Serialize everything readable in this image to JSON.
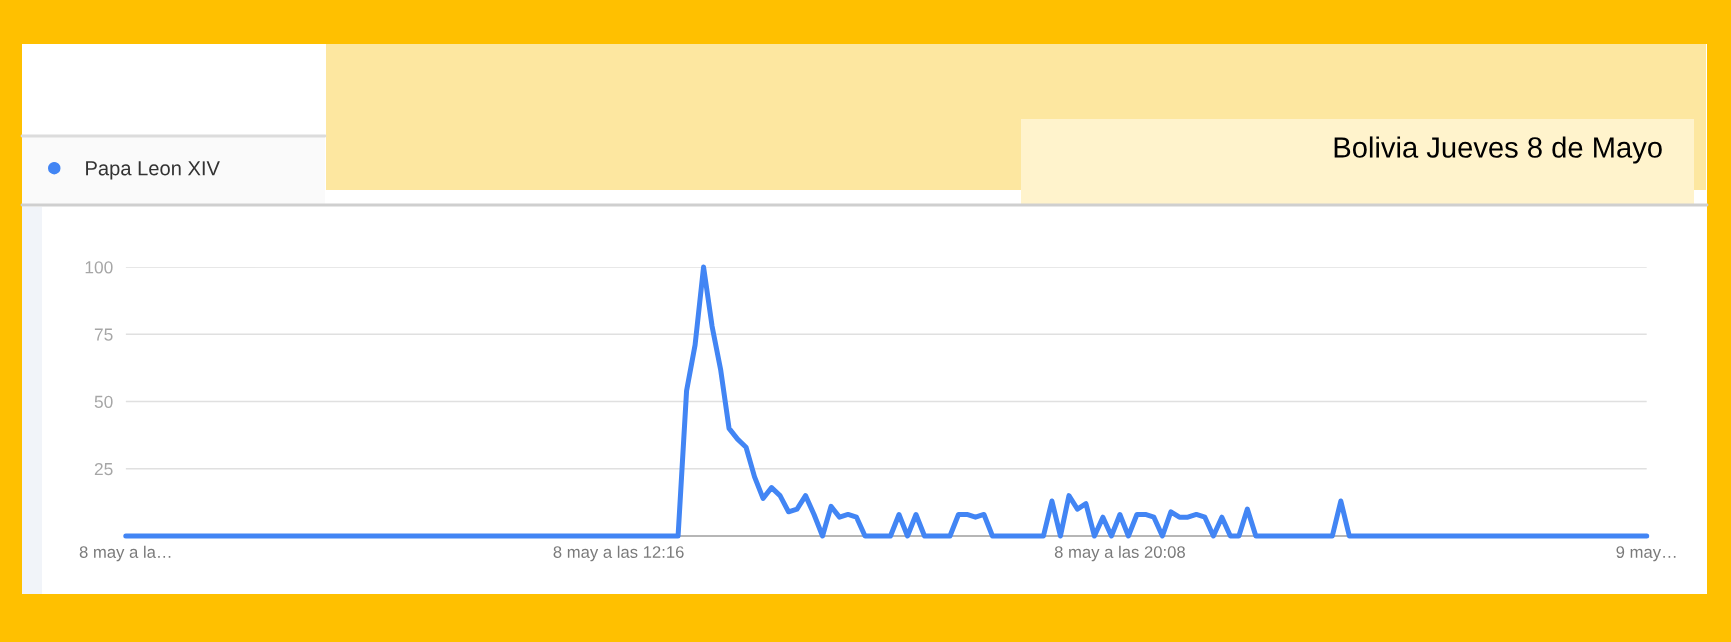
{
  "chart_data": {
    "type": "line",
    "title": "Bolivia Jueves 8 de Mayo",
    "categories": [
      "8 may a la…",
      null,
      null,
      null,
      null,
      null,
      null,
      null,
      null,
      null,
      null,
      null,
      null,
      null,
      null,
      null,
      null,
      null,
      null,
      null,
      null,
      null,
      null,
      null,
      null,
      null,
      null,
      null,
      null,
      null,
      null,
      null,
      null,
      null,
      null,
      null,
      null,
      null,
      null,
      null,
      null,
      null,
      null,
      null,
      null,
      null,
      null,
      null,
      null,
      null,
      null,
      null,
      null,
      null,
      null,
      null,
      null,
      null,
      "8 may a las 12:16",
      null,
      null,
      null,
      null,
      null,
      null,
      null,
      null,
      null,
      null,
      null,
      null,
      null,
      null,
      null,
      null,
      null,
      null,
      null,
      null,
      null,
      null,
      null,
      null,
      null,
      null,
      null,
      null,
      null,
      null,
      null,
      null,
      null,
      null,
      null,
      null,
      null,
      null,
      null,
      null,
      null,
      null,
      null,
      null,
      null,
      null,
      null,
      null,
      null,
      null,
      null,
      null,
      null,
      null,
      null,
      null,
      null,
      null,
      "8 may a las 20:08",
      null,
      null,
      null,
      null,
      null,
      null,
      null,
      null,
      null,
      null,
      null,
      null,
      null,
      null,
      null,
      null,
      null,
      null,
      null,
      null,
      null,
      null,
      null,
      null,
      null,
      null,
      null,
      null,
      null,
      null,
      null,
      null,
      null,
      null,
      null,
      null,
      null,
      null,
      null,
      null,
      null,
      null,
      null,
      null,
      null,
      null,
      null,
      null,
      null,
      null,
      null,
      null,
      null,
      null,
      null,
      null,
      null,
      null,
      null,
      null,
      null,
      "9 may…"
    ],
    "series": [
      {
        "name": "Papa Leon XIV",
        "color": "#4285f4",
        "values": [
          0,
          0,
          0,
          0,
          0,
          0,
          0,
          0,
          0,
          0,
          0,
          0,
          0,
          0,
          0,
          0,
          0,
          0,
          0,
          0,
          0,
          0,
          0,
          0,
          0,
          0,
          0,
          0,
          0,
          0,
          0,
          0,
          0,
          0,
          0,
          0,
          0,
          0,
          0,
          0,
          0,
          0,
          0,
          0,
          0,
          0,
          0,
          0,
          0,
          0,
          0,
          0,
          0,
          0,
          0,
          0,
          0,
          0,
          0,
          0,
          0,
          0,
          0,
          0,
          0,
          0,
          54,
          71,
          100,
          78,
          62,
          40,
          36,
          33,
          22,
          14,
          18,
          15,
          9,
          10,
          15,
          8,
          0,
          11,
          7,
          8,
          7,
          0,
          0,
          0,
          0,
          8,
          0,
          8,
          0,
          0,
          0,
          0,
          8,
          8,
          7,
          8,
          0,
          0,
          0,
          0,
          0,
          0,
          0,
          13,
          0,
          15,
          10,
          12,
          0,
          7,
          0,
          8,
          0,
          8,
          8,
          7,
          0,
          9,
          7,
          7,
          8,
          7,
          0,
          7,
          0,
          0,
          10,
          0,
          0,
          0,
          0,
          0,
          0,
          0,
          0,
          0,
          0,
          13,
          0,
          0,
          0,
          0,
          0,
          0,
          0,
          0,
          0,
          0,
          0,
          0,
          0,
          0,
          0,
          0,
          0,
          0,
          0,
          0,
          0,
          0,
          0,
          0,
          0,
          0,
          0,
          0,
          0,
          0,
          0,
          0,
          0,
          0,
          0,
          0
        ]
      }
    ],
    "ylim": [
      0,
      100
    ],
    "yticks": [
      25,
      50,
      75,
      100
    ],
    "grid": "y",
    "legend": "top left",
    "line_style": "solid"
  }
}
